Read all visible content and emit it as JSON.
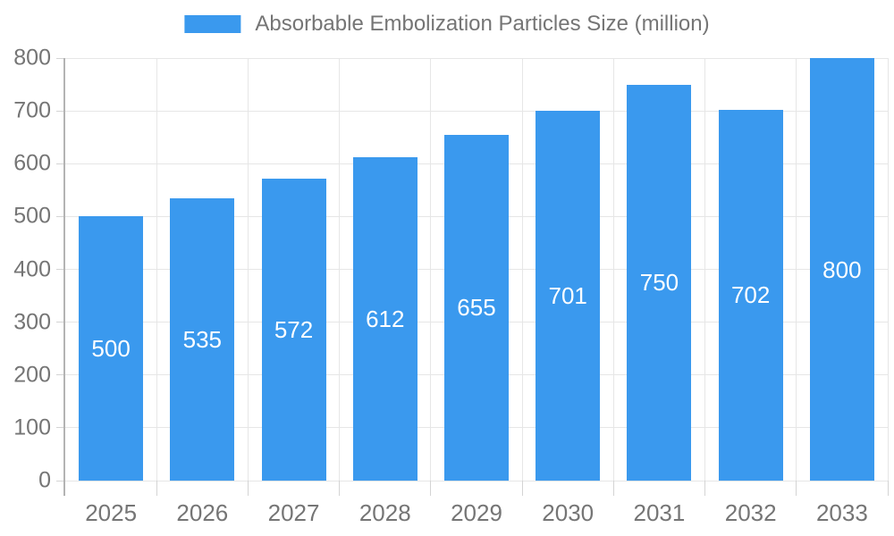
{
  "legend": {
    "label": "Absorbable Embolization Particles Size (million)"
  },
  "chart_data": {
    "type": "bar",
    "title": "Absorbable Embolization Particles Size (million)",
    "categories": [
      "2025",
      "2026",
      "2027",
      "2028",
      "2029",
      "2030",
      "2031",
      "2032",
      "2033"
    ],
    "values": [
      500,
      535,
      572,
      612,
      655,
      701,
      750,
      702,
      800
    ],
    "series_name": "Absorbable Embolization Particles Size (million)",
    "xlabel": "",
    "ylabel": "",
    "ylim": [
      0,
      800
    ],
    "ytick_step": 100,
    "grid": true,
    "legend_position": "top",
    "bar_labels_shown": true,
    "colors": {
      "bar": "#3A99EE",
      "bar_value_text": "#ffffff",
      "axis_text": "#757575",
      "gridline": "#e6e6e6",
      "tick": "#d4d4d4",
      "axis_line": "#b3b3b3",
      "background": "#ffffff"
    }
  }
}
